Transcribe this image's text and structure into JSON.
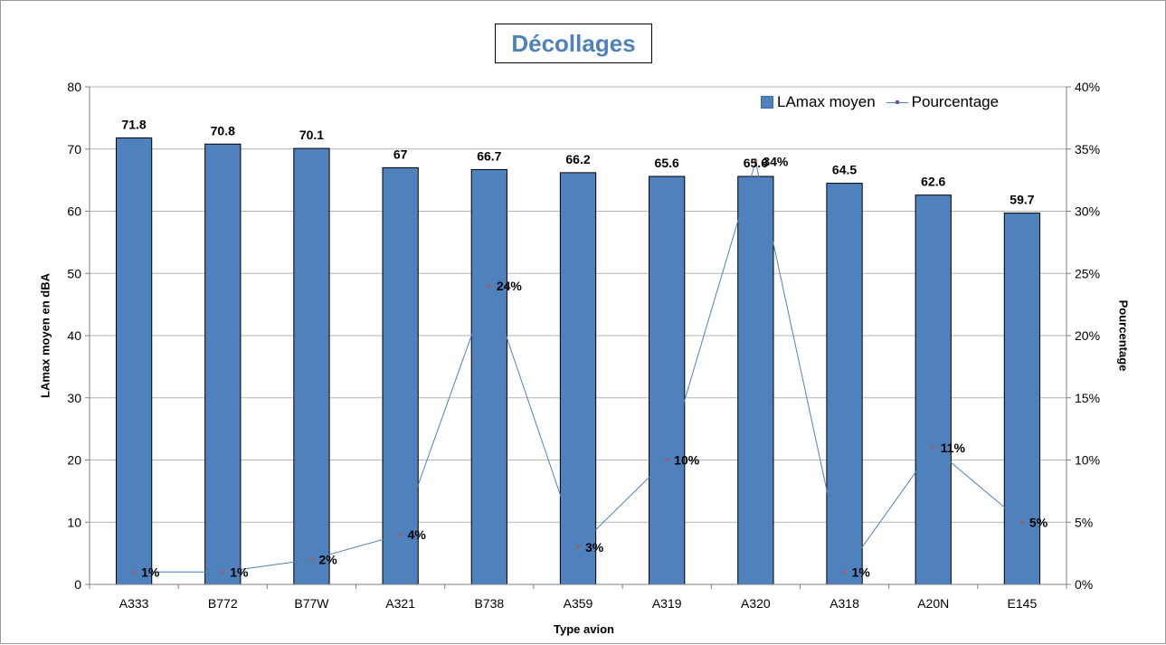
{
  "chart_data": {
    "type": "bar",
    "title": "Décollages",
    "xlabel": "Type avion",
    "ylabel": "LAmax moyen en dBA",
    "y2label": "Pourcentage",
    "categories": [
      "A333",
      "B772",
      "B77W",
      "A321",
      "B738",
      "A359",
      "A319",
      "A320",
      "A318",
      "A20N",
      "E145"
    ],
    "series": [
      {
        "name": "LAmax moyen",
        "type": "bar",
        "axis": "left",
        "values": [
          71.8,
          70.8,
          70.1,
          67,
          66.7,
          66.2,
          65.6,
          65.6,
          64.5,
          62.6,
          59.7
        ],
        "labels": [
          "71.8",
          "70.8",
          "70.1",
          "67",
          "66.7",
          "66.2",
          "65.6",
          "65.6",
          "64.5",
          "62.6",
          "59.7"
        ]
      },
      {
        "name": "Pourcentage",
        "type": "line",
        "axis": "right",
        "values": [
          1,
          1,
          2,
          4,
          24,
          3,
          10,
          34,
          1,
          11,
          5
        ],
        "labels": [
          "1%",
          "1%",
          "2%",
          "4%",
          "24%",
          "3%",
          "10%",
          "34%",
          "1%",
          "11%",
          "5%"
        ]
      }
    ],
    "ylim": [
      0,
      80
    ],
    "y_ticks": [
      "0",
      "10",
      "20",
      "30",
      "40",
      "50",
      "60",
      "70",
      "80"
    ],
    "y2lim": [
      0,
      40
    ],
    "y2_ticks": [
      "0%",
      "5%",
      "10%",
      "15%",
      "20%",
      "25%",
      "30%",
      "35%",
      "40%"
    ],
    "grid": true,
    "legend": "top-right",
    "colors": {
      "bar": "#4f81bd",
      "line": "#4f81bd",
      "marker": "#c0504d",
      "grid": "#b3b3b3",
      "title": "#4f81bd"
    }
  }
}
